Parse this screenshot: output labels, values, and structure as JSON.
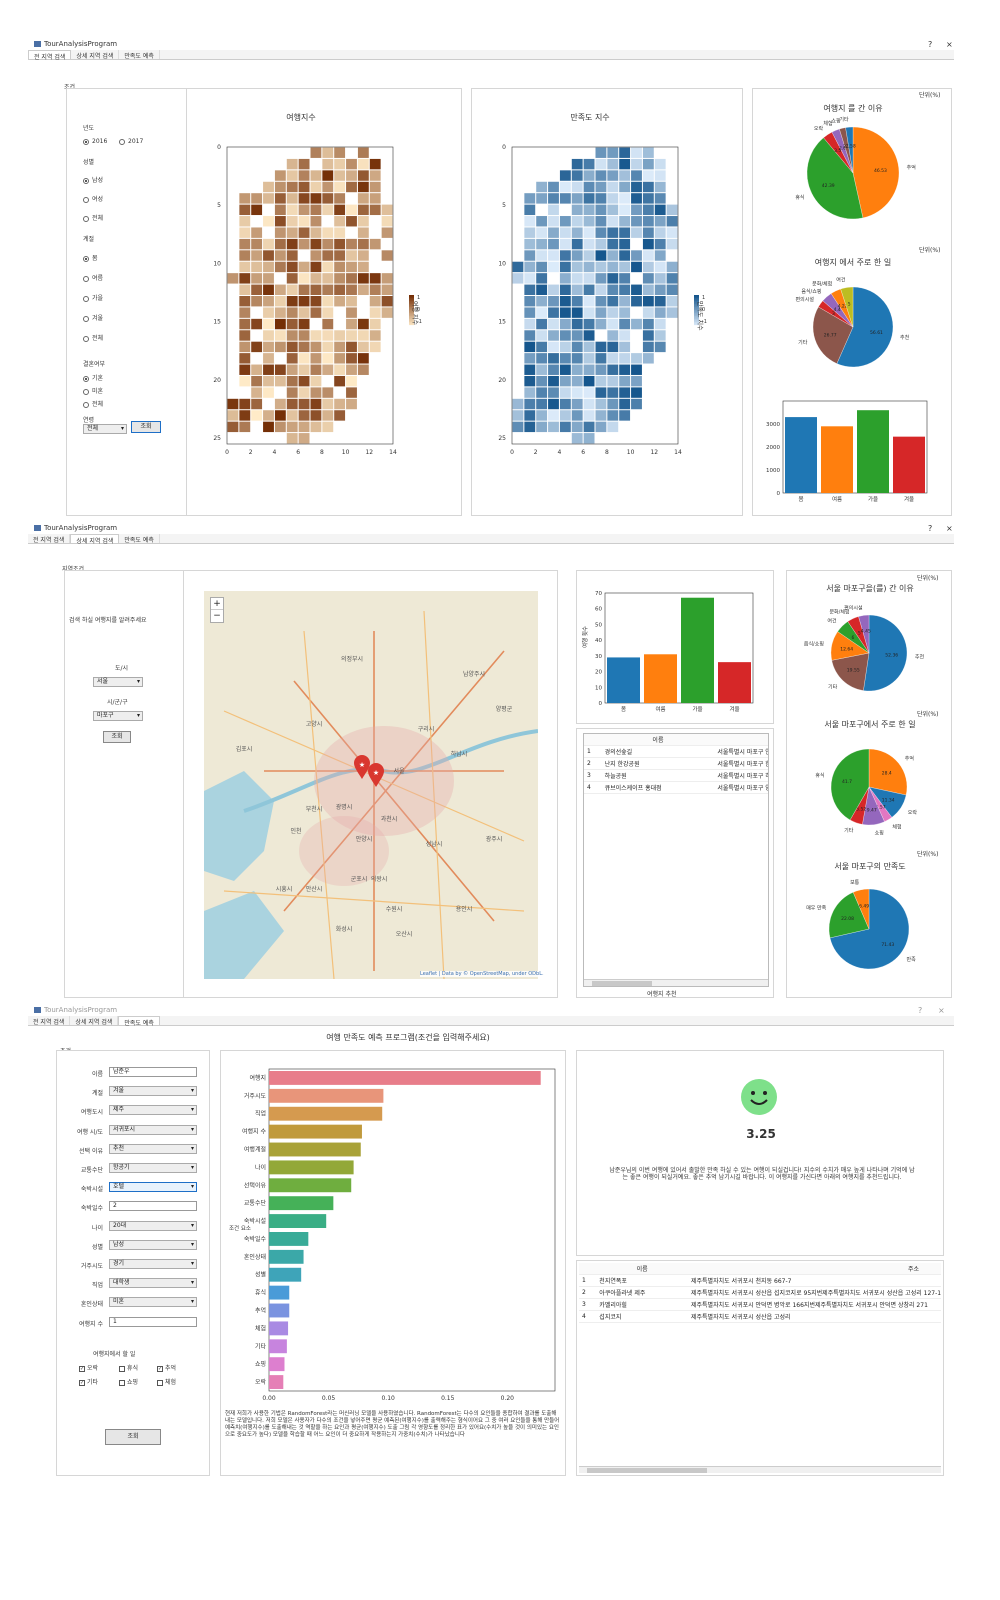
{
  "win1": {
    "title": "TourAnalysisProgram",
    "help": "?",
    "close": "×",
    "tabs": [
      "전 지역 검색",
      "상세 지역 검색",
      "만족도 예측"
    ],
    "active": 0,
    "cond_title": "조건",
    "year_label": "년도",
    "years": [
      "2016",
      "2017"
    ],
    "gender_label": "성별",
    "genders": [
      "남성",
      "여성",
      "전체"
    ],
    "season_label": "계절",
    "seasons": [
      "봄",
      "여름",
      "가을",
      "겨울",
      "전체"
    ],
    "married_label": "결혼여부",
    "married": [
      "기혼",
      "미혼",
      "전체"
    ],
    "age_label": "연령",
    "age_value": "전체",
    "search_btn": "조회",
    "heat1_title": "여행지수",
    "heat1_cbar": "여행 지수",
    "heat2_title": "만족도 지수",
    "heat2_cbar": "만족도 지수",
    "yticks": [
      "0",
      "5",
      "10",
      "15",
      "20",
      "25"
    ],
    "xticks": [
      "0",
      "2",
      "4",
      "6",
      "8",
      "10",
      "12",
      "14"
    ],
    "cbar_ticks": [
      "1",
      "0",
      "-1"
    ],
    "unit": "단위(%)",
    "pie1_title": "여행지 를 간 이유",
    "pie2_title": "여행지 에서 주로 한 일"
  },
  "chart_data": [
    {
      "type": "pie",
      "title": "여행지 를 간 이유",
      "labels": [
        "추억",
        "휴식",
        "오락",
        "체험",
        "쇼핑",
        "기타"
      ],
      "values": [
        46.53,
        42.39,
        3.5,
        2.8,
        2.2,
        2.58
      ],
      "colors": [
        "#ff7f0e",
        "#2ca02c",
        "#d62728",
        "#9467bd",
        "#8c564b",
        "#1f77b4"
      ]
    },
    {
      "type": "pie",
      "title": "여행지 에서 주로 한 일",
      "labels": [
        "추천",
        "기타",
        "편의시설",
        "음식/쇼핑",
        "문화/체험",
        "여건"
      ],
      "values": [
        56.61,
        26.77,
        3.0,
        4.4,
        4.22,
        5.0
      ],
      "colors": [
        "#1f77b4",
        "#8c564b",
        "#d62728",
        "#9467bd",
        "#ff7f0e",
        "#bcbd22"
      ]
    },
    {
      "type": "bar",
      "categories": [
        "봄",
        "여름",
        "가을",
        "겨울"
      ],
      "values": [
        3300,
        2900,
        3600,
        2450
      ],
      "ylim": [
        0,
        4000
      ],
      "yticks": [
        0,
        1000,
        2000,
        3000
      ],
      "colors": [
        "#1f77b4",
        "#ff7f0e",
        "#2ca02c",
        "#d62728"
      ]
    },
    {
      "type": "bar",
      "categories": [
        "봄",
        "여름",
        "가을",
        "겨울"
      ],
      "values": [
        29,
        31,
        67,
        26
      ],
      "ylim": [
        0,
        70
      ],
      "yticks": [
        0,
        10,
        20,
        30,
        40,
        50,
        60,
        70
      ],
      "ylabel": "여행 횟수",
      "colors": [
        "#1f77b4",
        "#ff7f0e",
        "#2ca02c",
        "#d62728"
      ]
    },
    {
      "type": "pie",
      "title": "서울 마포구을(를) 간 이유",
      "labels": [
        "추천",
        "기타",
        "음식/쇼핑",
        "여건",
        "문화/체험",
        "편의시설"
      ],
      "values": [
        52.36,
        19.55,
        12.64,
        6.0,
        5.0,
        4.45
      ],
      "colors": [
        "#1f77b4",
        "#8c564b",
        "#ff7f0e",
        "#2ca02c",
        "#d62728",
        "#9467bd"
      ]
    },
    {
      "type": "pie",
      "title": "서울 마포구에서 주로 한 일",
      "labels": [
        "추억",
        "오락",
        "체험",
        "쇼핑",
        "기타",
        "휴식"
      ],
      "values": [
        28.4,
        11.34,
        3.57,
        9.47,
        5.52,
        41.7
      ],
      "colors": [
        "#ff7f0e",
        "#1f77b4",
        "#e377c2",
        "#9467bd",
        "#d62728",
        "#2ca02c"
      ]
    },
    {
      "type": "pie",
      "title": "서울 마포구의 만족도",
      "labels": [
        "만족",
        "매우 만족",
        "보통"
      ],
      "values": [
        71.43,
        22.08,
        6.49
      ],
      "colors": [
        "#1f77b4",
        "#2ca02c",
        "#ff7f0e"
      ]
    },
    {
      "type": "bar",
      "orientation": "horizontal",
      "categories": [
        "여행지",
        "거주시도",
        "직업",
        "여행지 수",
        "여행계절",
        "나이",
        "선택이유",
        "교통수단",
        "숙박시설",
        "숙박일수",
        "혼인상태",
        "성별",
        "휴식",
        "추억",
        "체험",
        "기타",
        "쇼핑",
        "오락"
      ],
      "values": [
        0.228,
        0.096,
        0.095,
        0.078,
        0.077,
        0.071,
        0.069,
        0.054,
        0.048,
        0.033,
        0.029,
        0.027,
        0.017,
        0.017,
        0.016,
        0.015,
        0.013,
        0.012
      ],
      "xticks": [
        "0.00",
        "0.05",
        "0.10",
        "0.15",
        "0.20"
      ],
      "xlim": [
        0,
        0.24
      ]
    }
  ],
  "win2": {
    "title": "TourAnalysisProgram",
    "help": "?",
    "close": "×",
    "tabs": [
      "전 지역 검색",
      "상세 지역 검색",
      "만족도 예측"
    ],
    "active": 1,
    "region_title": "지역조건",
    "prompt": "검색 하실 여행지를 알려주세요",
    "sido_label": "도/시",
    "sido": "서울",
    "sgg_label": "시/군/구",
    "sgg": "마포구",
    "btn": "조회",
    "zoom_in": "+",
    "zoom_out": "−",
    "attribution": "Leaflet | Data by © OpenStreetMap, under ODbL.",
    "place_labels": [
      "의정부시",
      "남양주시",
      "구리시",
      "고양시",
      "김포시",
      "부천시",
      "인천",
      "광명시",
      "안양시",
      "과천시",
      "성남시",
      "하남시",
      "수원시",
      "용인시",
      "화성시",
      "오산시",
      "시흥시",
      "안산시",
      "군포시",
      "의왕시",
      "광주시",
      "양평군",
      "서울"
    ],
    "table_header": [
      "",
      "이름",
      ""
    ],
    "rows": [
      [
        "1",
        "경의선숲길",
        "서울특별시 마포구 연남동"
      ],
      [
        "2",
        "난지 한강공원",
        "서울특별시 마포구 한강난지로 162"
      ],
      [
        "3",
        "하늘공원",
        "서울특별시 마포구 하늘공원로 95"
      ],
      [
        "4",
        "큐브이스케이프 홍대점",
        "서울특별시 마포구 양화로16길 15"
      ]
    ],
    "table_caption": "여행지 추천",
    "unit": "단위(%)"
  },
  "win3": {
    "title": "TourAnalysisProgram",
    "help": "?",
    "close": "×",
    "tabs": [
      "전 지역 검색",
      "상세 지역 검색",
      "만족도 예측"
    ],
    "active": 2,
    "heading": "여행 만족도 예측 프로그램(조건을 입력해주세요)",
    "cond_title": "조건",
    "fields": [
      [
        "이름",
        "남준우",
        "text"
      ],
      [
        "계절",
        "겨울",
        "combo"
      ],
      [
        "여행도시",
        "제주",
        "combo"
      ],
      [
        "여행 시/도",
        "서귀포시",
        "combo"
      ],
      [
        "선택 이유",
        "추천",
        "combo"
      ],
      [
        "교통수단",
        "항공기",
        "combo"
      ],
      [
        "숙박시설",
        "호텔",
        "combo"
      ],
      [
        "숙박일수",
        "2",
        "text"
      ],
      [
        "나이",
        "20대",
        "combo"
      ],
      [
        "성별",
        "남성",
        "combo"
      ],
      [
        "거주시도",
        "경기",
        "combo"
      ],
      [
        "직업",
        "대학생",
        "combo"
      ],
      [
        "혼인상태",
        "미혼",
        "combo"
      ],
      [
        "여행지 수",
        "1",
        "text"
      ]
    ],
    "activity_label": "여행지에서 할 일",
    "acts": [
      [
        "오락",
        true
      ],
      [
        "휴식",
        false
      ],
      [
        "추억",
        true
      ],
      [
        "기타",
        true
      ],
      [
        "쇼핑",
        false
      ],
      [
        "체험",
        false
      ]
    ],
    "btn": "조회",
    "ylabel": "조건\n요소",
    "note": "현재 저희가 사용한 기법은 RandomForest라는 머신러닝 모델을 사용하였습니다. RandomForest는 다수의 요인들을 종합하여 결과를 도출해내는 모델입니다. 저희 모델은 사용자가 다수의 조건을 넣어주면 평균 예측된(여행지수)를 출력해주는 형식이어요 그 중 여러 요인들을 통해 만들어 예측치(여행지수)를 도출해내는 것 역할을 하는 요인과 평균(여행지수) 도출 그림 각 영향도를 정리한 표가 있어요(수치가 높을 것이 의미있는 요인으로 중요도가 높다) 모델을 학습할 때 어느 요인이 더 중요하게 작용하는지 가중치(수치)가 나타났습니다",
    "score": "3.25",
    "result": "남준우님의 이번 여행에 있어서 출발한 만족 하실 수 있는 여행이 되실겁니다! 지수의 수치가 매우 높게 나타나며 기억에 남는 좋은 여행이 되실거예요. 좋은 추억 남기시길 바랍니다. 이 여행지를 가신다면 아래의 여행지를 추천드립니다.",
    "table_header": [
      "",
      "이름",
      "주소"
    ],
    "rows": [
      [
        "1",
        "천지연폭포",
        "제주특별자치도 서귀포시 천지동 667-7"
      ],
      [
        "2",
        "아쿠아플라넷 제주",
        "제주특별자치도 서귀포시 성산읍 섭지코지로 95지번제주특별자치도 서귀포시 성산읍 고성리 127-1"
      ],
      [
        "3",
        "카멜리아힐",
        "제주특별자치도 서귀포시 안덕면 병악로 166지번제주특별자치도 서귀포시 안덕면 상창리 271"
      ],
      [
        "4",
        "섭지코지",
        "제주특별자치도 서귀포시 성산읍 고성리"
      ]
    ]
  }
}
